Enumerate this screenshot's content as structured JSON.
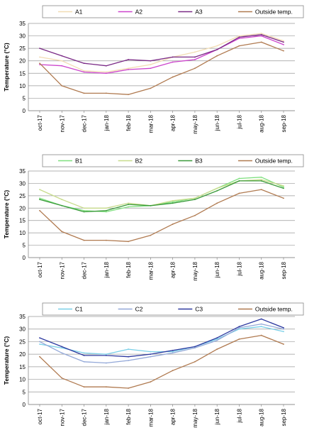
{
  "chart_data": [
    {
      "type": "line",
      "ylabel": "Temperature (°C)",
      "ylim": [
        0,
        35
      ],
      "yticks": [
        0,
        5,
        10,
        15,
        20,
        25,
        30,
        35
      ],
      "grid": "horizontal",
      "legend_position": "top",
      "categories": [
        "oct-17",
        "nov-17",
        "dec-17",
        "jan-18",
        "feb-18",
        "mar-18",
        "apr-18",
        "may-18",
        "jun-18",
        "jul-18",
        "aug-18",
        "sep-18"
      ],
      "series": [
        {
          "name": "A1",
          "color": "#f2ddb4",
          "values": [
            21.5,
            20,
            16,
            15.5,
            17,
            18.5,
            21.5,
            23.5,
            26,
            30,
            31,
            28
          ]
        },
        {
          "name": "A2",
          "color": "#cc44cc",
          "values": [
            18.5,
            18,
            15.5,
            15,
            16.5,
            17,
            19.5,
            20.5,
            24.5,
            29,
            30,
            26.5
          ]
        },
        {
          "name": "A3",
          "color": "#7a2a86",
          "values": [
            25,
            22,
            19,
            18,
            20.5,
            20,
            21.5,
            21.5,
            24.5,
            29.5,
            30.5,
            27.5
          ]
        },
        {
          "name": "Outside temp.",
          "color": "#b07a50",
          "values": [
            19,
            10,
            7,
            7,
            6.5,
            9,
            13.5,
            17,
            22,
            26,
            27.5,
            24
          ]
        }
      ]
    },
    {
      "type": "line",
      "ylabel": "Temperature (°C)",
      "ylim": [
        0,
        35
      ],
      "yticks": [
        0,
        5,
        10,
        15,
        20,
        25,
        30,
        35
      ],
      "grid": "horizontal",
      "legend_position": "top",
      "categories": [
        "oct-17",
        "nov-17",
        "dec-17",
        "jan-18",
        "feb-18",
        "mar-18",
        "apr-18",
        "may-18",
        "jun-18",
        "jul-18",
        "aug-18",
        "sep-18"
      ],
      "series": [
        {
          "name": "B1",
          "color": "#7fe07f",
          "values": [
            24,
            21,
            19,
            18.5,
            20.5,
            21,
            22.5,
            24,
            28,
            32,
            32.5,
            28.5
          ]
        },
        {
          "name": "B2",
          "color": "#c8dc8c",
          "values": [
            27.5,
            23.5,
            20,
            20,
            22,
            21,
            23,
            24,
            28,
            31,
            31.5,
            29
          ]
        },
        {
          "name": "B3",
          "color": "#3a9a3a",
          "values": [
            23.5,
            21,
            18.5,
            19,
            21.5,
            21,
            22,
            23.5,
            27,
            31,
            31,
            28
          ]
        },
        {
          "name": "Outside temp.",
          "color": "#b07a50",
          "values": [
            19,
            10.5,
            7,
            7,
            6.5,
            9,
            13.5,
            17,
            22,
            26,
            27.5,
            24
          ]
        }
      ]
    },
    {
      "type": "line",
      "ylabel": "Temperature (°C)",
      "ylim": [
        0,
        35
      ],
      "yticks": [
        0,
        5,
        10,
        15,
        20,
        25,
        30,
        35
      ],
      "grid": "horizontal",
      "legend_position": "top",
      "categories": [
        "oct-17",
        "nov-17",
        "dec-17",
        "jan-18",
        "feb-18",
        "mar-18",
        "apr-18",
        "may-18",
        "jun-18",
        "jul-18",
        "aug-18",
        "sep-18"
      ],
      "series": [
        {
          "name": "C1",
          "color": "#7ad0e8",
          "values": [
            24,
            22.5,
            20.5,
            20,
            22,
            21,
            21,
            23,
            26,
            30,
            31,
            29
          ]
        },
        {
          "name": "C2",
          "color": "#93a8d8",
          "values": [
            25,
            20.5,
            17,
            16.5,
            17.5,
            19,
            20.5,
            22.5,
            25.5,
            30.5,
            32,
            30
          ]
        },
        {
          "name": "C3",
          "color": "#2e3aa0",
          "values": [
            26.5,
            23,
            19.5,
            19.5,
            19,
            20,
            21.5,
            23,
            26.5,
            31,
            34,
            30.5
          ]
        },
        {
          "name": "Outside temp.",
          "color": "#b07a50",
          "values": [
            19,
            10.5,
            7,
            7,
            6.5,
            9,
            13.5,
            17,
            22,
            26,
            27.5,
            24
          ]
        }
      ]
    }
  ]
}
